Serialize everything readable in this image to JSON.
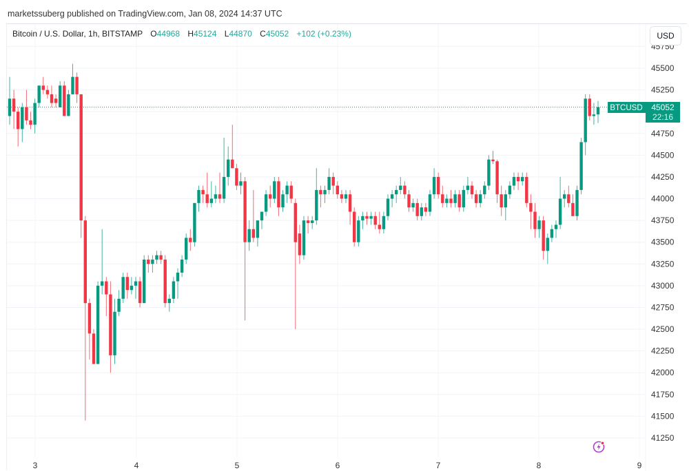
{
  "header": {
    "published": "marketssuberg published on TradingView.com, Jan 08, 2024 14:37 UTC"
  },
  "legend": {
    "symbol": "Bitcoin / U.S. Dollar, 1h, BITSTAMP",
    "o_label": "O",
    "o": "44968",
    "h_label": "H",
    "h": "45124",
    "l_label": "L",
    "l": "44870",
    "c_label": "C",
    "c": "45052",
    "change": "+102 (+0.23%)"
  },
  "currency_button": "USD",
  "price_tag": {
    "symbol": "BTCUSD",
    "price": "45052",
    "countdown": "22:16"
  },
  "colors": {
    "up": "#089981",
    "down": "#f23645",
    "accent": "#089981"
  },
  "icons": [
    "lightning-icon"
  ],
  "chart_data": {
    "type": "candlestick",
    "title": "Bitcoin / U.S. Dollar, 1h, BITSTAMP",
    "ylim": [
      41100,
      45800
    ],
    "y_ticks": [
      41250,
      41500,
      41750,
      42000,
      42250,
      42500,
      42750,
      43000,
      43250,
      43500,
      43750,
      44000,
      44250,
      44500,
      44750,
      45000,
      45250,
      45500,
      45750
    ],
    "y_tick_labels": [
      "41250",
      "41500",
      "41750",
      "42000",
      "42250",
      "42500",
      "42750",
      "43000",
      "43250",
      "43500",
      "43750",
      "44000",
      "44250",
      "44500",
      "44750",
      "",
      "45250",
      "45500",
      "45750"
    ],
    "x_tick_labels": [
      "3",
      "4",
      "5",
      "6",
      "7",
      "8",
      "9"
    ],
    "last_price": 45052,
    "grid": true,
    "candles_ohlc": [
      [
        44950,
        45400,
        44850,
        45150
      ],
      [
        45150,
        45250,
        44800,
        45000
      ],
      [
        45000,
        45050,
        44600,
        44800
      ],
      [
        44800,
        45100,
        44650,
        45050
      ],
      [
        45050,
        45250,
        44850,
        44900
      ],
      [
        44900,
        45000,
        44800,
        44850
      ],
      [
        44850,
        45150,
        44750,
        45100
      ],
      [
        45100,
        45300,
        45050,
        45300
      ],
      [
        45300,
        45400,
        45200,
        45250
      ],
      [
        45250,
        45300,
        45150,
        45200
      ],
      [
        45200,
        45300,
        45050,
        45100
      ],
      [
        45150,
        45200,
        45050,
        45100
      ],
      [
        45050,
        45350,
        45050,
        45300
      ],
      [
        45300,
        45350,
        44950,
        44950
      ],
      [
        44950,
        45250,
        44950,
        45200
      ],
      [
        45200,
        45550,
        45200,
        45400
      ],
      [
        45400,
        45450,
        45100,
        45200
      ],
      [
        45200,
        45200,
        43550,
        43750
      ],
      [
        43750,
        43800,
        41450,
        42800
      ],
      [
        42800,
        42850,
        42150,
        42450
      ],
      [
        42450,
        42500,
        42100,
        42100
      ],
      [
        42100,
        43050,
        42100,
        43000
      ],
      [
        43000,
        43650,
        42900,
        43050
      ],
      [
        43050,
        43100,
        42650,
        42900
      ],
      [
        42900,
        43050,
        42000,
        42200
      ],
      [
        42200,
        42850,
        42100,
        42700
      ],
      [
        42700,
        42950,
        42650,
        42850
      ],
      [
        42850,
        43150,
        42800,
        43100
      ],
      [
        43100,
        43150,
        42850,
        42950
      ],
      [
        42950,
        43100,
        42900,
        43000
      ],
      [
        43000,
        43100,
        42850,
        43050
      ],
      [
        43050,
        43100,
        42750,
        42800
      ],
      [
        42800,
        43350,
        42800,
        43300
      ],
      [
        43300,
        43350,
        43150,
        43250
      ],
      [
        43250,
        43350,
        43150,
        43300
      ],
      [
        43300,
        43400,
        43250,
        43350
      ],
      [
        43350,
        43400,
        43250,
        43300
      ],
      [
        43300,
        43350,
        42750,
        42800
      ],
      [
        42800,
        42900,
        42700,
        42850
      ],
      [
        42850,
        43100,
        42800,
        43050
      ],
      [
        43050,
        43200,
        42850,
        43150
      ],
      [
        43150,
        43350,
        43100,
        43300
      ],
      [
        43300,
        43600,
        43250,
        43550
      ],
      [
        43550,
        43650,
        43400,
        43500
      ],
      [
        43500,
        43950,
        43450,
        43950
      ],
      [
        43950,
        44150,
        43850,
        44100
      ],
      [
        44100,
        44150,
        43950,
        44050
      ],
      [
        44050,
        44300,
        43900,
        43950
      ],
      [
        43950,
        44200,
        43900,
        44000
      ],
      [
        44000,
        44150,
        43950,
        44050
      ],
      [
        44050,
        44300,
        43950,
        44000
      ],
      [
        44000,
        44700,
        43950,
        44250
      ],
      [
        44250,
        44600,
        44150,
        44450
      ],
      [
        44450,
        44850,
        44350,
        44350
      ],
      [
        44350,
        44400,
        44100,
        44150
      ],
      [
        44150,
        44300,
        44050,
        44200
      ],
      [
        44200,
        44250,
        42600,
        43500
      ],
      [
        43500,
        43750,
        43400,
        43650
      ],
      [
        43650,
        44100,
        43500,
        43550
      ],
      [
        43550,
        43750,
        43450,
        43750
      ],
      [
        43750,
        43850,
        43650,
        43850
      ],
      [
        43850,
        44100,
        43800,
        44050
      ],
      [
        44050,
        44150,
        43900,
        44000
      ],
      [
        44000,
        44250,
        43950,
        44200
      ],
      [
        44200,
        44250,
        43800,
        43900
      ],
      [
        43900,
        44100,
        43850,
        44050
      ],
      [
        44050,
        44200,
        43950,
        44150
      ],
      [
        44150,
        44200,
        43950,
        44000
      ],
      [
        43950,
        44000,
        42500,
        43500
      ],
      [
        43600,
        43700,
        43250,
        43350
      ],
      [
        43350,
        43800,
        43300,
        43750
      ],
      [
        43750,
        43800,
        43600,
        43720
      ],
      [
        43720,
        43800,
        43650,
        43750
      ],
      [
        43750,
        44350,
        43700,
        44100
      ],
      [
        44100,
        44150,
        43900,
        44050
      ],
      [
        44050,
        44150,
        43950,
        44100
      ],
      [
        44100,
        44350,
        44050,
        44250
      ],
      [
        44250,
        44300,
        44050,
        44150
      ],
      [
        44150,
        44200,
        44000,
        44050
      ],
      [
        44050,
        44100,
        43950,
        44000
      ],
      [
        44000,
        44100,
        43950,
        44050
      ],
      [
        44050,
        44100,
        43700,
        43850
      ],
      [
        43850,
        43900,
        43450,
        43500
      ],
      [
        43500,
        43800,
        43450,
        43750
      ],
      [
        43750,
        43850,
        43650,
        43800
      ],
      [
        43800,
        43850,
        43700,
        43770
      ],
      [
        43770,
        43850,
        43700,
        43800
      ],
      [
        43800,
        43850,
        43650,
        43700
      ],
      [
        43700,
        43850,
        43600,
        43650
      ],
      [
        43650,
        43850,
        43600,
        43800
      ],
      [
        43800,
        44050,
        43750,
        44000
      ],
      [
        44000,
        44100,
        43900,
        44050
      ],
      [
        44050,
        44150,
        43950,
        44100
      ],
      [
        44100,
        44250,
        44050,
        44150
      ],
      [
        44150,
        44200,
        44000,
        44050
      ],
      [
        44050,
        44100,
        43850,
        43900
      ],
      [
        43900,
        44000,
        43850,
        43950
      ],
      [
        43950,
        44000,
        43750,
        43800
      ],
      [
        43800,
        43950,
        43750,
        43900
      ],
      [
        43900,
        43950,
        43800,
        43850
      ],
      [
        43850,
        44100,
        43800,
        44050
      ],
      [
        44050,
        44350,
        44000,
        44250
      ],
      [
        44250,
        44300,
        44000,
        44050
      ],
      [
        44050,
        44150,
        43900,
        43950
      ],
      [
        43950,
        44050,
        43900,
        44000
      ],
      [
        44000,
        44100,
        43900,
        43950
      ],
      [
        43950,
        44100,
        43900,
        44050
      ],
      [
        44050,
        44100,
        43850,
        43900
      ],
      [
        43900,
        44150,
        43850,
        44100
      ],
      [
        44100,
        44250,
        44050,
        44150
      ],
      [
        44150,
        44200,
        44000,
        44050
      ],
      [
        44050,
        44100,
        43900,
        43950
      ],
      [
        43950,
        44100,
        43900,
        44050
      ],
      [
        44050,
        44200,
        44000,
        44150
      ],
      [
        44150,
        44500,
        44100,
        44450
      ],
      [
        44450,
        44550,
        44400,
        44430
      ],
      [
        44430,
        44450,
        43950,
        44050
      ],
      [
        44050,
        44150,
        43800,
        43900
      ],
      [
        43900,
        44100,
        43750,
        44050
      ],
      [
        44050,
        44200,
        44000,
        44150
      ],
      [
        44150,
        44300,
        44100,
        44250
      ],
      [
        44250,
        44300,
        44100,
        44200
      ],
      [
        44200,
        44300,
        44150,
        44250
      ],
      [
        44250,
        44300,
        43900,
        43950
      ],
      [
        43950,
        44050,
        43650,
        43850
      ],
      [
        43850,
        43950,
        43550,
        43650
      ],
      [
        43650,
        43800,
        43550,
        43750
      ],
      [
        43750,
        43800,
        43300,
        43400
      ],
      [
        43400,
        43600,
        43250,
        43550
      ],
      [
        43550,
        43700,
        43500,
        43650
      ],
      [
        43650,
        43750,
        43550,
        43700
      ],
      [
        43700,
        44250,
        43650,
        44000
      ],
      [
        44000,
        44100,
        43900,
        44050
      ],
      [
        44050,
        44150,
        43900,
        43950
      ],
      [
        43950,
        44050,
        43800,
        43800
      ],
      [
        43800,
        44150,
        43750,
        44100
      ],
      [
        44100,
        44700,
        44050,
        44650
      ],
      [
        44650,
        45200,
        44500,
        45150
      ],
      [
        45150,
        45200,
        44900,
        44950
      ],
      [
        44950,
        45100,
        44850,
        44968
      ],
      [
        44968,
        45124,
        44870,
        45052
      ]
    ]
  }
}
